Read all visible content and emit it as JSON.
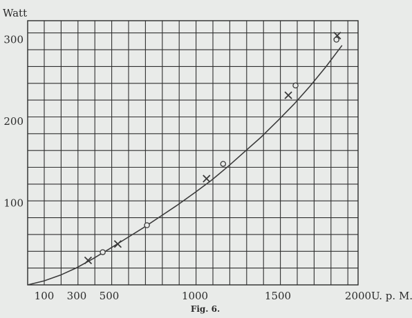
{
  "chart_data": {
    "type": "scatter",
    "title": "",
    "caption": "Fig. 6.",
    "xlabel": "U. p. M.",
    "ylabel": "Watt",
    "x_ticks": [
      {
        "value": 100,
        "label": "100"
      },
      {
        "value": 300,
        "label": "300"
      },
      {
        "value": 500,
        "label": "500"
      },
      {
        "value": 1000,
        "label": "1000"
      },
      {
        "value": 1500,
        "label": "1500"
      },
      {
        "value": 2000,
        "label": "2000"
      }
    ],
    "y_ticks": [
      {
        "value": 100,
        "label": "100"
      },
      {
        "value": 200,
        "label": "200"
      },
      {
        "value": 300,
        "label": "300"
      }
    ],
    "xlim": [
      0,
      2000
    ],
    "ylim": [
      0,
      320
    ],
    "grid": true,
    "series": [
      {
        "marker": "cross",
        "x": [
          370,
          550,
          1070,
          1565,
          1870
        ],
        "y": [
          30,
          50,
          130,
          232,
          305
        ]
      },
      {
        "marker": "circle",
        "x": [
          460,
          720,
          1170,
          1610,
          1865
        ],
        "y": [
          40,
          73,
          148,
          244,
          300
        ]
      }
    ],
    "curve": {
      "x": [
        0,
        100,
        200,
        300,
        400,
        500,
        600,
        700,
        800,
        900,
        1000,
        1100,
        1200,
        1300,
        1400,
        1500,
        1600,
        1700,
        1800,
        1900
      ],
      "y": [
        0,
        5,
        12,
        21,
        32,
        44,
        57,
        70,
        84,
        98,
        113,
        128,
        145,
        163,
        181,
        201,
        221,
        243,
        267,
        293
      ]
    },
    "colors": {
      "ink": "#3a3a3a",
      "paper": "#e9ebe9"
    }
  }
}
